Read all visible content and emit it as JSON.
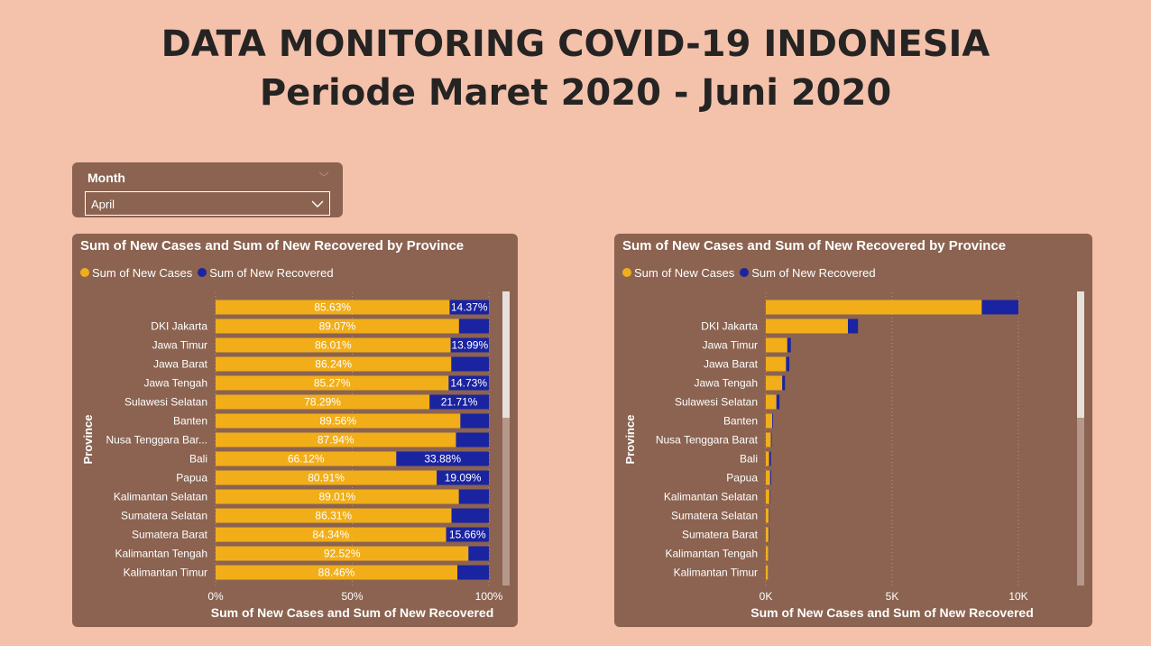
{
  "page": {
    "title_line1": "DATA MONITORING COVID-19 INDONESIA",
    "title_line2": "Periode Maret 2020 - Juni 2020"
  },
  "slicer": {
    "label": "Month",
    "selected": "April"
  },
  "colors": {
    "new_cases": "#f2ae19",
    "new_recovered": "#1b24a0",
    "panel_bg": "#8b6350",
    "page_bg": "#f4c1ab"
  },
  "icons": {
    "slicer_dropdown": "chevron-down-icon",
    "slicer_eraser": "chevron-down-icon"
  },
  "left_chart": {
    "title": "Sum of New Cases and Sum of New Recovered by Province",
    "legend": [
      "Sum of New Cases",
      "Sum of New Recovered"
    ],
    "ylabel": "Province",
    "xlabel": "Sum of New Cases and Sum of New Recovered",
    "xticks": [
      "0%",
      "50%",
      "100%"
    ]
  },
  "right_chart": {
    "title": "Sum of New Cases and Sum of New Recovered by Province",
    "legend": [
      "Sum of New Cases",
      "Sum of New Recovered"
    ],
    "ylabel": "Province",
    "xlabel": "Sum of New Cases and Sum of New Recovered",
    "xticks": [
      "0K",
      "5K",
      "10K"
    ]
  },
  "chart_data": [
    {
      "type": "bar",
      "orientation": "horizontal",
      "stacked": "100%",
      "title": "Sum of New Cases and Sum of New Recovered by Province",
      "xlabel": "Sum of New Cases and Sum of New Recovered",
      "ylabel": "Province",
      "xlim": [
        0,
        100
      ],
      "categories": [
        "",
        "DKI Jakarta",
        "Jawa Timur",
        "Jawa Barat",
        "Jawa Tengah",
        "Sulawesi Selatan",
        "Banten",
        "Nusa Tenggara Bar...",
        "Bali",
        "Papua",
        "Kalimantan Selatan",
        "Sumatera Selatan",
        "Sumatera Barat",
        "Kalimantan Tengah",
        "Kalimantan Timur"
      ],
      "series": [
        {
          "name": "Sum of New Cases",
          "values": [
            85.63,
            89.07,
            86.01,
            86.24,
            85.27,
            78.29,
            89.56,
            87.94,
            66.12,
            80.91,
            89.01,
            86.31,
            84.34,
            92.52,
            88.46
          ],
          "labels": [
            "85.63%",
            "89.07%",
            "86.01%",
            "86.24%",
            "85.27%",
            "78.29%",
            "89.56%",
            "87.94%",
            "66.12%",
            "80.91%",
            "89.01%",
            "86.31%",
            "84.34%",
            "92.52%",
            "88.46%"
          ]
        },
        {
          "name": "Sum of New Recovered",
          "values": [
            14.37,
            10.93,
            13.99,
            13.76,
            14.73,
            21.71,
            10.44,
            12.06,
            33.88,
            19.09,
            10.99,
            13.69,
            15.66,
            7.48,
            11.54
          ],
          "labels": [
            "14.37%",
            "",
            "13.99%",
            "",
            "14.73%",
            "21.71%",
            "",
            "",
            "33.88%",
            "19.09%",
            "",
            "",
            "15.66%",
            "",
            ""
          ]
        }
      ],
      "grid": true,
      "legend": "top-left"
    },
    {
      "type": "bar",
      "orientation": "horizontal",
      "stacked": true,
      "title": "Sum of New Cases and Sum of New Recovered by Province",
      "xlabel": "Sum of New Cases and Sum of New Recovered",
      "ylabel": "Province",
      "xlim": [
        0,
        10000
      ],
      "categories": [
        "",
        "DKI Jakarta",
        "Jawa Timur",
        "Jawa Barat",
        "Jawa Tengah",
        "Sulawesi Selatan",
        "Banten",
        "Nusa Tenggara Barat",
        "Bali",
        "Papua",
        "Kalimantan Selatan",
        "Sumatera Selatan",
        "Sumatera Barat",
        "Kalimantan Tengah",
        "Kalimantan Timur"
      ],
      "series": [
        {
          "name": "Sum of New Cases",
          "values": [
            8550,
            3250,
            850,
            800,
            650,
            420,
            250,
            200,
            130,
            170,
            140,
            120,
            110,
            100,
            90
          ]
        },
        {
          "name": "Sum of New Recovered",
          "values": [
            1450,
            400,
            140,
            130,
            110,
            120,
            30,
            30,
            70,
            40,
            20,
            20,
            20,
            10,
            10
          ]
        }
      ],
      "grid": true,
      "legend": "top-left"
    }
  ]
}
